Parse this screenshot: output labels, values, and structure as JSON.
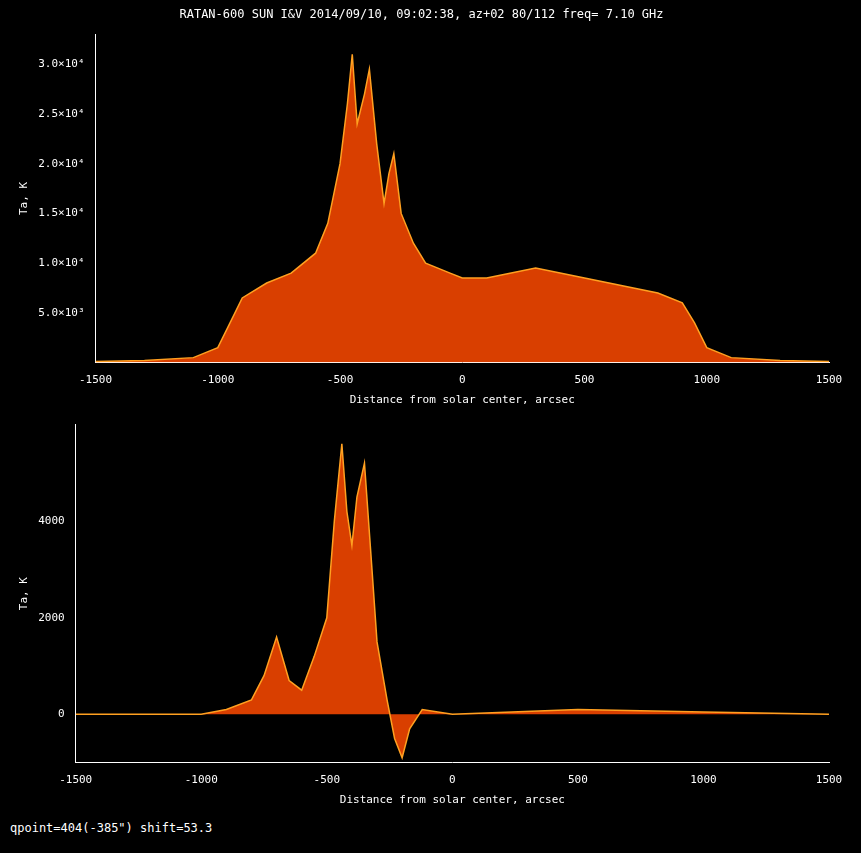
{
  "chart_data": [
    {
      "type": "line",
      "title": "RATAN-600 SUN I&V 2014/09/10, 09:02:38, az+02 80/112 freq= 7.10 GHz",
      "x_label": "Distance from solar center, arcsec",
      "y_label": "Ta, K",
      "color": "#ff4a00",
      "grid": false,
      "x": [
        -1500,
        -1300,
        -1100,
        -1000,
        -950,
        -900,
        -800,
        -700,
        -600,
        -550,
        -500,
        -470,
        -450,
        -430,
        -400,
        -380,
        -350,
        -320,
        -300,
        -280,
        -250,
        -200,
        -150,
        -100,
        -50,
        0,
        100,
        200,
        300,
        400,
        500,
        600,
        700,
        800,
        900,
        950,
        1000,
        1100,
        1300,
        1500
      ],
      "values": [
        100,
        200,
        500,
        1500,
        4000,
        6500,
        8000,
        9000,
        11000,
        14000,
        20000,
        26000,
        31000,
        24000,
        27000,
        29500,
        22000,
        16000,
        19000,
        21000,
        15000,
        12000,
        10000,
        9500,
        9000,
        8500,
        8500,
        9000,
        9500,
        9000,
        8500,
        8000,
        7500,
        7000,
        6000,
        4000,
        1500,
        500,
        200,
        100
      ],
      "xlim": [
        -1500,
        1500
      ],
      "xticks": [
        -1500,
        -1000,
        -500,
        0,
        500,
        1000,
        1500
      ],
      "ylim": [
        0,
        33000
      ],
      "yticks": [
        {
          "value": 5000,
          "label": "5.0×10³"
        },
        {
          "value": 10000,
          "label": "1.0×10⁴"
        },
        {
          "value": 15000,
          "label": "1.5×10⁴"
        },
        {
          "value": 20000,
          "label": "2.0×10⁴"
        },
        {
          "value": 25000,
          "label": "2.5×10⁴"
        },
        {
          "value": 30000,
          "label": "3.0×10⁴"
        }
      ]
    },
    {
      "type": "line",
      "x_label": "Distance from solar center, arcsec",
      "y_label": "Ta, K",
      "annotation": "qpoint=404(-385\") shift=53.3",
      "color": "#ff4a00",
      "grid": false,
      "x": [
        -1500,
        -1000,
        -900,
        -800,
        -750,
        -700,
        -650,
        -600,
        -550,
        -500,
        -470,
        -440,
        -420,
        -400,
        -380,
        -350,
        -320,
        -300,
        -260,
        -230,
        -200,
        -170,
        -120,
        0,
        500,
        1000,
        1500
      ],
      "values": [
        0,
        0,
        100,
        300,
        800,
        1600,
        700,
        500,
        1200,
        2000,
        4000,
        5600,
        4200,
        3500,
        4500,
        5200,
        3000,
        1500,
        300,
        -500,
        -900,
        -300,
        100,
        0,
        100,
        50,
        0
      ],
      "xlim": [
        -1500,
        1500
      ],
      "xticks": [
        -1500,
        -1000,
        -500,
        0,
        500,
        1000,
        1500
      ],
      "ylim": [
        -1000,
        6000
      ],
      "yticks": [
        0,
        2000,
        4000
      ]
    }
  ]
}
